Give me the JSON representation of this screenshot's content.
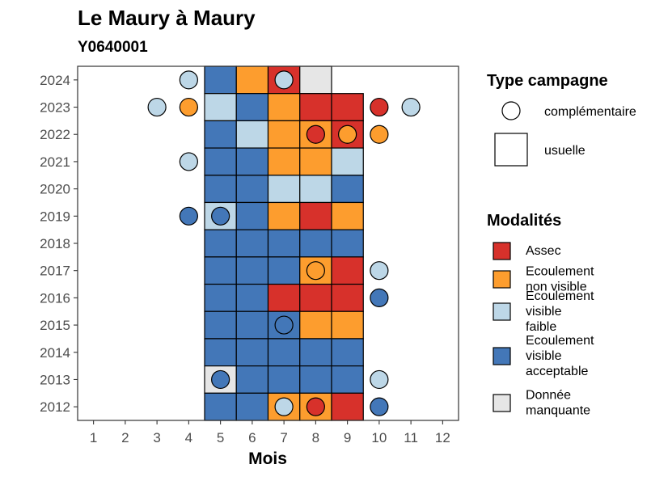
{
  "chart_data": {
    "type": "heatmap",
    "title": "Le Maury à Maury",
    "subtitle": "Y0640001",
    "xlabel": "Mois",
    "ylabel": "",
    "x_ticks": [
      1,
      2,
      3,
      4,
      5,
      6,
      7,
      8,
      9,
      10,
      11,
      12
    ],
    "y_ticks": [
      2012,
      2013,
      2014,
      2015,
      2016,
      2017,
      2018,
      2019,
      2020,
      2021,
      2022,
      2023,
      2024
    ],
    "xlim": [
      0.5,
      12.5
    ],
    "ylim": [
      2011.5,
      2024.5
    ],
    "grid": false,
    "legend_position": "right",
    "colors": {
      "Assec": "#d7312b",
      "Ecoulement non visible": "#fd9d2e",
      "Ecoulement visible faible": "#bdd7e7",
      "Ecoulement visible acceptable": "#4377b8",
      "Donnée manquante": "#e6e6e6"
    },
    "legend_campagne": {
      "title": "Type campagne",
      "items": [
        {
          "key": "complementaire",
          "label": "complémentaire",
          "shape": "circle"
        },
        {
          "key": "usuelle",
          "label": "usuelle",
          "shape": "square"
        }
      ]
    },
    "legend_modalites": {
      "title": "Modalités",
      "items": [
        {
          "key": "Assec",
          "lines": [
            "Assec"
          ]
        },
        {
          "key": "Ecoulement non visible",
          "lines": [
            "Ecoulement",
            "non visible"
          ]
        },
        {
          "key": "Ecoulement visible faible",
          "lines": [
            "Ecoulement",
            "visible",
            "faible"
          ]
        },
        {
          "key": "Ecoulement visible acceptable",
          "lines": [
            "Ecoulement",
            "visible",
            "acceptable"
          ]
        },
        {
          "key": "Donnée manquante",
          "lines": [
            "Donnée",
            "manquante"
          ]
        }
      ]
    },
    "usuelle": [
      {
        "year": 2024,
        "month": 5,
        "modalite": "Ecoulement visible acceptable"
      },
      {
        "year": 2024,
        "month": 6,
        "modalite": "Ecoulement non visible"
      },
      {
        "year": 2024,
        "month": 7,
        "modalite": "Assec"
      },
      {
        "year": 2024,
        "month": 8,
        "modalite": "Donnée manquante"
      },
      {
        "year": 2023,
        "month": 5,
        "modalite": "Ecoulement visible faible"
      },
      {
        "year": 2023,
        "month": 6,
        "modalite": "Ecoulement visible acceptable"
      },
      {
        "year": 2023,
        "month": 7,
        "modalite": "Ecoulement non visible"
      },
      {
        "year": 2023,
        "month": 8,
        "modalite": "Assec"
      },
      {
        "year": 2023,
        "month": 9,
        "modalite": "Assec"
      },
      {
        "year": 2022,
        "month": 5,
        "modalite": "Ecoulement visible acceptable"
      },
      {
        "year": 2022,
        "month": 6,
        "modalite": "Ecoulement visible faible"
      },
      {
        "year": 2022,
        "month": 7,
        "modalite": "Ecoulement non visible"
      },
      {
        "year": 2022,
        "month": 8,
        "modalite": "Ecoulement non visible"
      },
      {
        "year": 2022,
        "month": 9,
        "modalite": "Assec"
      },
      {
        "year": 2021,
        "month": 5,
        "modalite": "Ecoulement visible acceptable"
      },
      {
        "year": 2021,
        "month": 6,
        "modalite": "Ecoulement visible acceptable"
      },
      {
        "year": 2021,
        "month": 7,
        "modalite": "Ecoulement non visible"
      },
      {
        "year": 2021,
        "month": 8,
        "modalite": "Ecoulement non visible"
      },
      {
        "year": 2021,
        "month": 9,
        "modalite": "Ecoulement visible faible"
      },
      {
        "year": 2020,
        "month": 5,
        "modalite": "Ecoulement visible acceptable"
      },
      {
        "year": 2020,
        "month": 6,
        "modalite": "Ecoulement visible acceptable"
      },
      {
        "year": 2020,
        "month": 7,
        "modalite": "Ecoulement visible faible"
      },
      {
        "year": 2020,
        "month": 8,
        "modalite": "Ecoulement visible faible"
      },
      {
        "year": 2020,
        "month": 9,
        "modalite": "Ecoulement visible acceptable"
      },
      {
        "year": 2019,
        "month": 5,
        "modalite": "Ecoulement visible faible"
      },
      {
        "year": 2019,
        "month": 6,
        "modalite": "Ecoulement visible acceptable"
      },
      {
        "year": 2019,
        "month": 7,
        "modalite": "Ecoulement non visible"
      },
      {
        "year": 2019,
        "month": 8,
        "modalite": "Assec"
      },
      {
        "year": 2019,
        "month": 9,
        "modalite": "Ecoulement non visible"
      },
      {
        "year": 2018,
        "month": 5,
        "modalite": "Ecoulement visible acceptable"
      },
      {
        "year": 2018,
        "month": 6,
        "modalite": "Ecoulement visible acceptable"
      },
      {
        "year": 2018,
        "month": 7,
        "modalite": "Ecoulement visible acceptable"
      },
      {
        "year": 2018,
        "month": 8,
        "modalite": "Ecoulement visible acceptable"
      },
      {
        "year": 2018,
        "month": 9,
        "modalite": "Ecoulement visible acceptable"
      },
      {
        "year": 2017,
        "month": 5,
        "modalite": "Ecoulement visible acceptable"
      },
      {
        "year": 2017,
        "month": 6,
        "modalite": "Ecoulement visible acceptable"
      },
      {
        "year": 2017,
        "month": 7,
        "modalite": "Ecoulement visible acceptable"
      },
      {
        "year": 2017,
        "month": 8,
        "modalite": "Ecoulement non visible"
      },
      {
        "year": 2017,
        "month": 9,
        "modalite": "Assec"
      },
      {
        "year": 2016,
        "month": 5,
        "modalite": "Ecoulement visible acceptable"
      },
      {
        "year": 2016,
        "month": 6,
        "modalite": "Ecoulement visible acceptable"
      },
      {
        "year": 2016,
        "month": 7,
        "modalite": "Assec"
      },
      {
        "year": 2016,
        "month": 8,
        "modalite": "Assec"
      },
      {
        "year": 2016,
        "month": 9,
        "modalite": "Assec"
      },
      {
        "year": 2015,
        "month": 5,
        "modalite": "Ecoulement visible acceptable"
      },
      {
        "year": 2015,
        "month": 6,
        "modalite": "Ecoulement visible acceptable"
      },
      {
        "year": 2015,
        "month": 7,
        "modalite": "Ecoulement visible acceptable"
      },
      {
        "year": 2015,
        "month": 8,
        "modalite": "Ecoulement non visible"
      },
      {
        "year": 2015,
        "month": 9,
        "modalite": "Ecoulement non visible"
      },
      {
        "year": 2014,
        "month": 5,
        "modalite": "Ecoulement visible acceptable"
      },
      {
        "year": 2014,
        "month": 6,
        "modalite": "Ecoulement visible acceptable"
      },
      {
        "year": 2014,
        "month": 7,
        "modalite": "Ecoulement visible acceptable"
      },
      {
        "year": 2014,
        "month": 8,
        "modalite": "Ecoulement visible acceptable"
      },
      {
        "year": 2014,
        "month": 9,
        "modalite": "Ecoulement visible acceptable"
      },
      {
        "year": 2013,
        "month": 5,
        "modalite": "Donnée manquante"
      },
      {
        "year": 2013,
        "month": 6,
        "modalite": "Ecoulement visible acceptable"
      },
      {
        "year": 2013,
        "month": 7,
        "modalite": "Ecoulement visible acceptable"
      },
      {
        "year": 2013,
        "month": 8,
        "modalite": "Ecoulement visible acceptable"
      },
      {
        "year": 2013,
        "month": 9,
        "modalite": "Ecoulement visible acceptable"
      },
      {
        "year": 2012,
        "month": 5,
        "modalite": "Ecoulement visible acceptable"
      },
      {
        "year": 2012,
        "month": 6,
        "modalite": "Ecoulement visible acceptable"
      },
      {
        "year": 2012,
        "month": 7,
        "modalite": "Ecoulement non visible"
      },
      {
        "year": 2012,
        "month": 8,
        "modalite": "Ecoulement non visible"
      },
      {
        "year": 2012,
        "month": 9,
        "modalite": "Assec"
      }
    ],
    "complementaire": [
      {
        "year": 2024,
        "month": 4,
        "modalite": "Ecoulement visible faible"
      },
      {
        "year": 2024,
        "month": 7,
        "modalite": "Ecoulement visible faible"
      },
      {
        "year": 2023,
        "month": 3,
        "modalite": "Ecoulement visible faible"
      },
      {
        "year": 2023,
        "month": 4,
        "modalite": "Ecoulement non visible"
      },
      {
        "year": 2023,
        "month": 10,
        "modalite": "Assec"
      },
      {
        "year": 2023,
        "month": 11,
        "modalite": "Ecoulement visible faible"
      },
      {
        "year": 2022,
        "month": 8,
        "modalite": "Assec"
      },
      {
        "year": 2022,
        "month": 9,
        "modalite": "Ecoulement non visible"
      },
      {
        "year": 2022,
        "month": 10,
        "modalite": "Ecoulement non visible"
      },
      {
        "year": 2021,
        "month": 4,
        "modalite": "Ecoulement visible faible"
      },
      {
        "year": 2019,
        "month": 4,
        "modalite": "Ecoulement visible acceptable"
      },
      {
        "year": 2019,
        "month": 5,
        "modalite": "Ecoulement visible acceptable"
      },
      {
        "year": 2017,
        "month": 8,
        "modalite": "Ecoulement non visible"
      },
      {
        "year": 2017,
        "month": 10,
        "modalite": "Ecoulement visible faible"
      },
      {
        "year": 2016,
        "month": 10,
        "modalite": "Ecoulement visible acceptable"
      },
      {
        "year": 2015,
        "month": 7,
        "modalite": "Ecoulement visible acceptable"
      },
      {
        "year": 2013,
        "month": 5,
        "modalite": "Ecoulement visible acceptable"
      },
      {
        "year": 2013,
        "month": 10,
        "modalite": "Ecoulement visible faible"
      },
      {
        "year": 2012,
        "month": 7,
        "modalite": "Ecoulement visible faible"
      },
      {
        "year": 2012,
        "month": 8,
        "modalite": "Assec"
      },
      {
        "year": 2012,
        "month": 10,
        "modalite": "Ecoulement visible acceptable"
      }
    ]
  }
}
